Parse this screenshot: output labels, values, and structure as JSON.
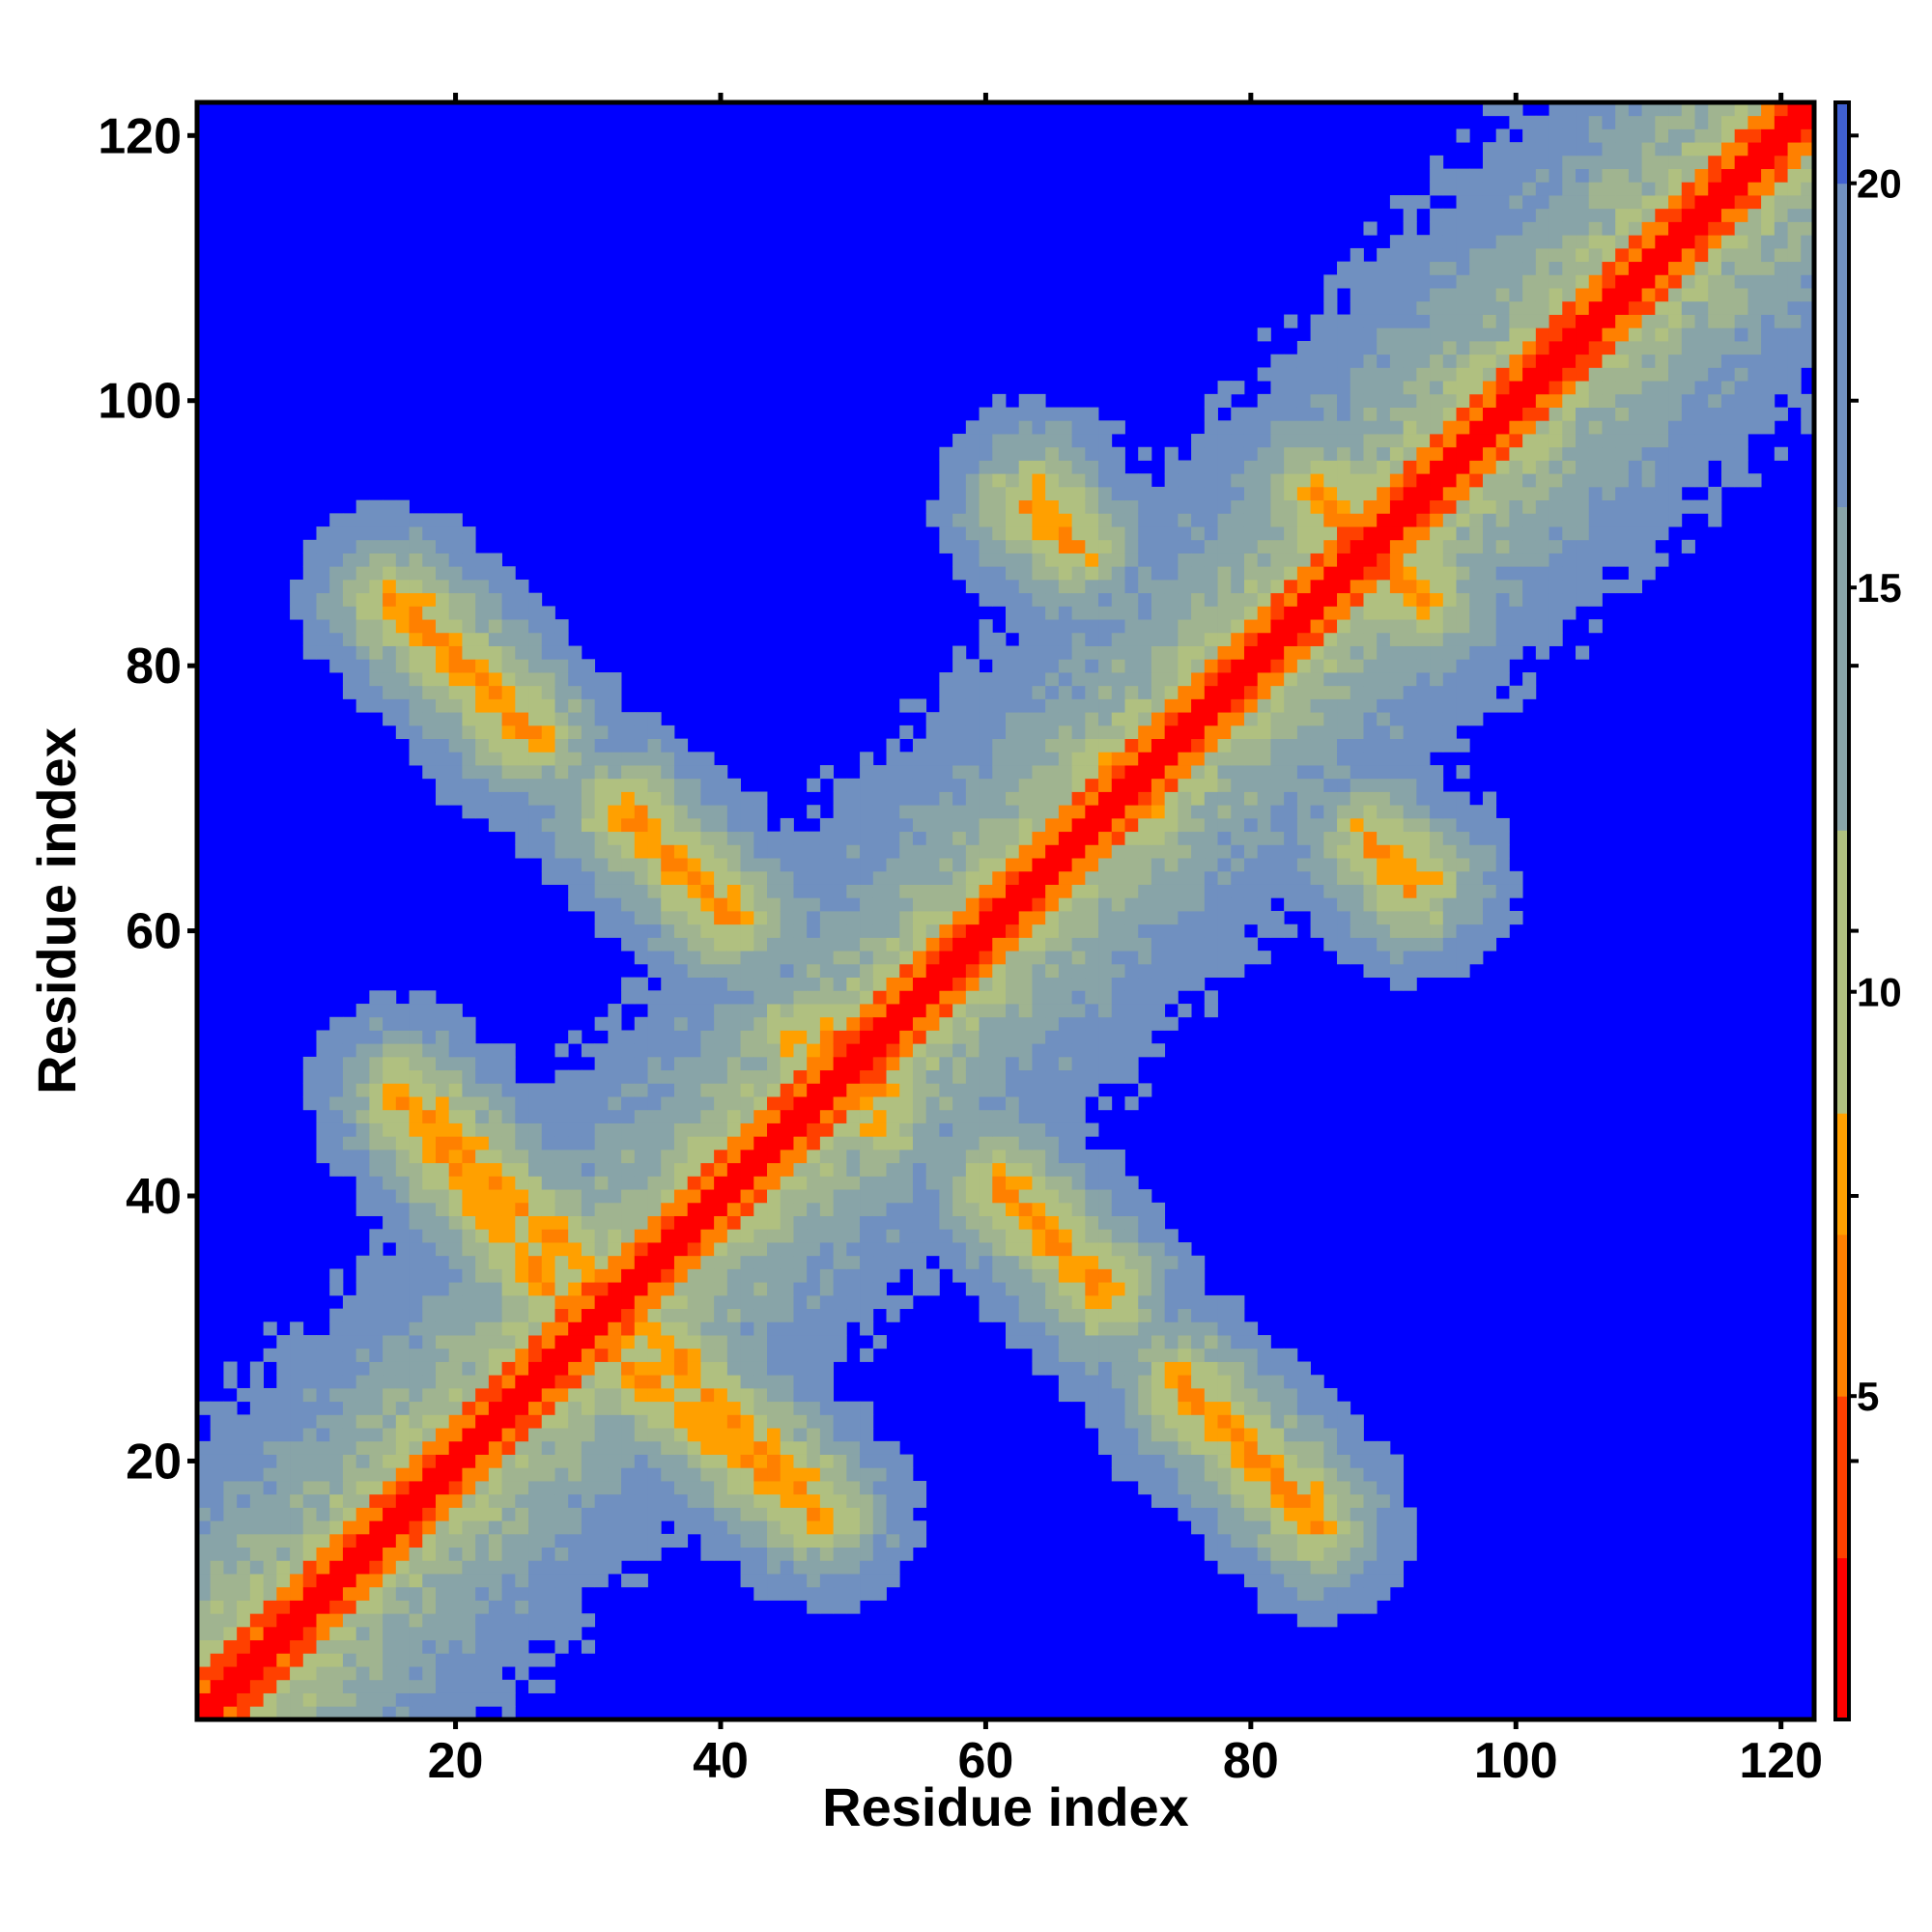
{
  "chart_data": {
    "type": "heatmap",
    "title": "",
    "xlabel": "Residue index",
    "ylabel": "Residue index",
    "n_residues": 122,
    "xlim": [
      1,
      122
    ],
    "ylim": [
      1,
      122
    ],
    "x_ticks": [
      20,
      40,
      60,
      80,
      100,
      120
    ],
    "y_ticks": [
      20,
      40,
      60,
      80,
      100,
      120
    ],
    "colorbar": {
      "range": [
        1,
        21
      ],
      "ticks": [
        5,
        10,
        15,
        20
      ],
      "threshold": 8.5,
      "colors": {
        "low": "#ff0000",
        "mid_low": "#ffa000",
        "mid": "#b0c080",
        "high": "#7090c0",
        "background": "#0000ff"
      }
    },
    "diagonal_value": 1.5,
    "near_diagonal_value": 4.5,
    "contact_bands": [
      {
        "start": [
          16,
          85
        ],
        "end": [
          25,
          75
        ],
        "min_value": 5.5
      },
      {
        "start": [
          32,
          69
        ],
        "end": [
          41,
          61
        ],
        "min_value": 5.5
      },
      {
        "start": [
          16,
          48
        ],
        "end": [
          30,
          34
        ],
        "min_value": 5.5
      },
      {
        "start": [
          32,
          28
        ],
        "end": [
          47,
          16
        ],
        "min_value": 5.5
      },
      {
        "start": [
          61,
          41
        ],
        "end": [
          69,
          33
        ],
        "min_value": 5.5
      },
      {
        "start": [
          75,
          26
        ],
        "end": [
          85,
          15
        ],
        "min_value": 5.5
      },
      {
        "start": [
          48,
          52
        ],
        "end": [
          52,
          46
        ],
        "min_value": 5.0
      },
      {
        "start": [
          63,
          92
        ],
        "end": [
          67,
          89
        ],
        "min_value": 5.5
      },
      {
        "start": [
          85,
          93
        ],
        "end": [
          93,
          85
        ],
        "min_value": 5.5
      },
      {
        "start": [
          90,
          66
        ],
        "end": [
          93,
          64
        ],
        "min_value": 5.5
      },
      {
        "start": [
          69,
          72
        ],
        "end": [
          72,
          69
        ],
        "min_value": 5.5
      }
    ]
  }
}
